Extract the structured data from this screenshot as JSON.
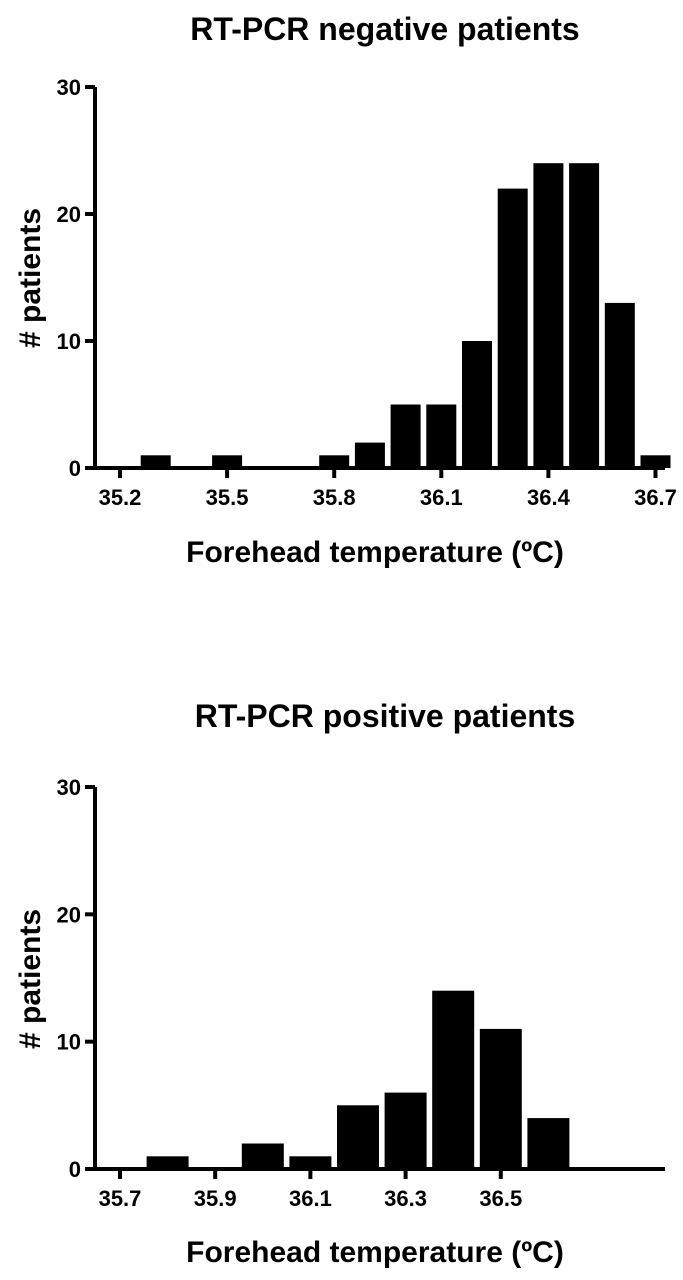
{
  "chart_data": [
    {
      "type": "bar",
      "title": "RT-PCR negative patients",
      "xlabel": "Forehead temperature (ºC)",
      "ylabel": "# patients",
      "ylim": [
        0,
        30
      ],
      "yticks": [
        "0",
        "10",
        "20",
        "30"
      ],
      "xtick_labels": [
        "35.2",
        "35.5",
        "35.8",
        "36.1",
        "36.4",
        "36.7"
      ],
      "grid": false,
      "legend": "none",
      "categories": [
        "35.2",
        "35.3",
        "35.4",
        "35.5",
        "35.6",
        "35.7",
        "35.8",
        "35.9",
        "36.0",
        "36.1",
        "36.2",
        "36.3",
        "36.4",
        "36.5",
        "36.6",
        "36.7"
      ],
      "values": [
        0,
        1,
        0,
        1,
        0,
        0,
        1,
        2,
        5,
        5,
        10,
        22,
        24,
        24,
        13,
        1
      ],
      "color": "#000000"
    },
    {
      "type": "bar",
      "title": "RT-PCR positive patients",
      "xlabel": "Forehead temperature (ºC)",
      "ylabel": "# patients",
      "ylim": [
        0,
        30
      ],
      "yticks": [
        "0",
        "10",
        "20",
        "30"
      ],
      "xtick_labels": [
        "35.7",
        "35.9",
        "36.1",
        "36.3",
        "36.5"
      ],
      "grid": false,
      "legend": "none",
      "categories": [
        "35.7",
        "35.8",
        "35.9",
        "36.0",
        "36.1",
        "36.2",
        "36.3",
        "36.4",
        "36.5",
        "36.6"
      ],
      "values": [
        0,
        1,
        0,
        2,
        1,
        5,
        6,
        14,
        11,
        4
      ],
      "color": "#000000"
    }
  ]
}
